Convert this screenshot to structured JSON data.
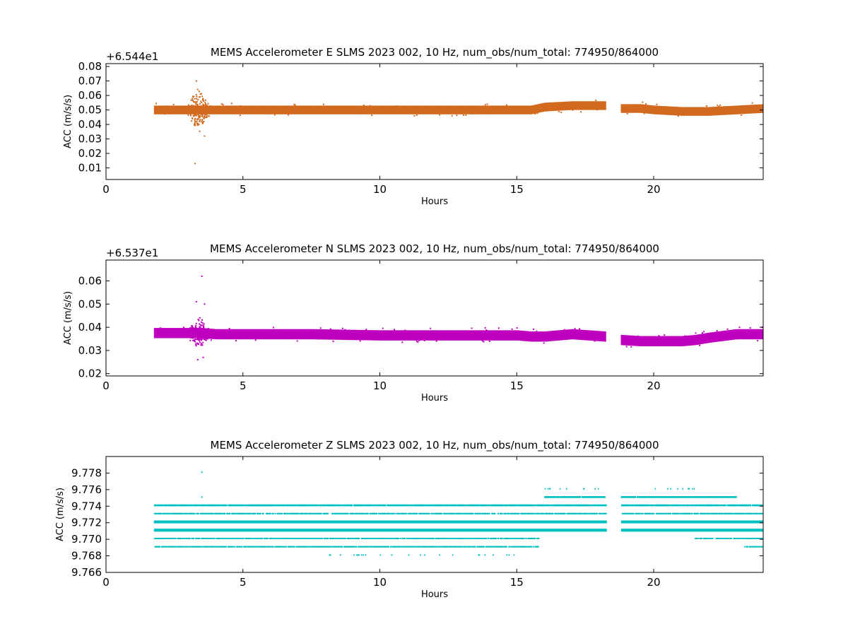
{
  "chart_data": [
    {
      "type": "scatter",
      "title": "MEMS Accelerometer E SLMS 2023 002, 10 Hz, num_obs/num_total: 774950/864000",
      "xlabel": "Hours",
      "ylabel": "ACC (m/s/s)",
      "offset_label": "+6.544e1",
      "xlim": [
        0,
        24
      ],
      "ylim": [
        0.002,
        0.082
      ],
      "x_ticks": [
        0,
        5,
        10,
        15,
        20
      ],
      "x_tick_labels": [
        "0",
        "5",
        "10",
        "15",
        "20"
      ],
      "y_ticks": [
        0.01,
        0.02,
        0.03,
        0.04,
        0.05,
        0.06,
        0.07,
        0.08
      ],
      "y_tick_labels": [
        "0.01",
        "0.02",
        "0.03",
        "0.04",
        "0.05",
        "0.06",
        "0.07",
        "0.08"
      ],
      "color": "#d2691e",
      "gap": [
        18.25,
        18.8
      ],
      "series": [
        {
          "x": [
            1.75,
            2.5,
            3.0,
            3.3,
            3.5,
            3.8,
            4.0,
            5.0,
            7.5,
            10.0,
            12.5,
            15.0,
            15.5,
            16.0,
            17.0,
            18.2,
            18.8,
            19.5,
            20.0,
            21.0,
            21.5,
            22.0,
            23.0,
            24.0
          ],
          "y": [
            0.05,
            0.05,
            0.05,
            0.05,
            0.05,
            0.05,
            0.05,
            0.05,
            0.05,
            0.05,
            0.05,
            0.05,
            0.05,
            0.052,
            0.053,
            0.053,
            0.051,
            0.051,
            0.05,
            0.049,
            0.049,
            0.049,
            0.05,
            0.051
          ]
        }
      ],
      "burst": {
        "x_range": [
          2.9,
          3.9
        ],
        "y_range": [
          0.03,
          0.066
        ],
        "outliers": [
          [
            3.25,
            0.013
          ],
          [
            3.3,
            0.07
          ],
          [
            3.6,
            0.032
          ]
        ]
      }
    },
    {
      "type": "scatter",
      "title": "MEMS Accelerometer N SLMS 2023 002, 10 Hz, num_obs/num_total: 774950/864000",
      "xlabel": "Hours",
      "ylabel": "ACC (m/s/s)",
      "offset_label": "+6.537e1",
      "xlim": [
        0,
        24
      ],
      "ylim": [
        0.019,
        0.069
      ],
      "x_ticks": [
        0,
        5,
        10,
        15,
        20
      ],
      "x_tick_labels": [
        "0",
        "5",
        "10",
        "15",
        "20"
      ],
      "y_ticks": [
        0.02,
        0.03,
        0.04,
        0.05,
        0.06
      ],
      "y_tick_labels": [
        "0.02",
        "0.03",
        "0.04",
        "0.05",
        "0.06"
      ],
      "color": "#bf00bf",
      "gap": [
        18.25,
        18.8
      ],
      "series": [
        {
          "x": [
            1.75,
            2.5,
            3.0,
            3.5,
            4.0,
            5.0,
            7.5,
            10.0,
            12.5,
            15.0,
            15.5,
            16.0,
            17.0,
            18.2,
            18.8,
            19.5,
            20.0,
            21.0,
            21.5,
            22.0,
            23.0,
            24.0
          ],
          "y": [
            0.0375,
            0.0375,
            0.0375,
            0.0375,
            0.037,
            0.037,
            0.037,
            0.0365,
            0.0365,
            0.0365,
            0.036,
            0.036,
            0.037,
            0.036,
            0.0345,
            0.034,
            0.034,
            0.034,
            0.0345,
            0.0355,
            0.037,
            0.037
          ]
        }
      ],
      "burst": {
        "x_range": [
          2.9,
          3.9
        ],
        "y_range": [
          0.03,
          0.046
        ],
        "outliers": [
          [
            3.5,
            0.062
          ],
          [
            3.3,
            0.051
          ],
          [
            3.6,
            0.05
          ],
          [
            3.35,
            0.026
          ],
          [
            3.55,
            0.027
          ]
        ]
      }
    },
    {
      "type": "scatter",
      "title": "MEMS Accelerometer Z SLMS 2023 002, 10 Hz, num_obs/num_total: 774950/864000",
      "xlabel": "Hours",
      "ylabel": "ACC (m/s/s)",
      "offset_label": "",
      "xlim": [
        0,
        24
      ],
      "ylim": [
        9.766,
        9.78
      ],
      "x_ticks": [
        0,
        5,
        10,
        15,
        20
      ],
      "x_tick_labels": [
        "0",
        "5",
        "10",
        "15",
        "20"
      ],
      "y_ticks": [
        9.766,
        9.768,
        9.77,
        9.772,
        9.774,
        9.776,
        9.778
      ],
      "y_tick_labels": [
        "9.766",
        "9.768",
        "9.770",
        "9.772",
        "9.774",
        "9.776",
        "9.778"
      ],
      "color": "#00bfbf",
      "gap": [
        18.25,
        18.8
      ],
      "quantized_levels": [
        {
          "y": 9.7761,
          "ranges": [
            [
              16.0,
              18.2
            ],
            [
              20.0,
              21.6
            ]
          ],
          "style": "sparse"
        },
        {
          "y": 9.7751,
          "ranges": [
            [
              16.0,
              18.2
            ],
            [
              18.8,
              23.0
            ]
          ],
          "style": "medium"
        },
        {
          "y": 9.7741,
          "ranges": [
            [
              1.75,
              24.0
            ]
          ],
          "style": "medium"
        },
        {
          "y": 9.7731,
          "ranges": [
            [
              1.75,
              24.0
            ]
          ],
          "style": "thin"
        },
        {
          "y": 9.7721,
          "ranges": [
            [
              1.75,
              24.0
            ]
          ],
          "style": "thick"
        },
        {
          "y": 9.7711,
          "ranges": [
            [
              1.75,
              24.0
            ]
          ],
          "style": "thick"
        },
        {
          "y": 9.7701,
          "ranges": [
            [
              1.75,
              15.8
            ],
            [
              21.5,
              24.0
            ]
          ],
          "style": "thin"
        },
        {
          "y": 9.7691,
          "ranges": [
            [
              1.75,
              15.8
            ],
            [
              23.3,
              24.0
            ]
          ],
          "style": "thin"
        },
        {
          "y": 9.7681,
          "ranges": [
            [
              8.0,
              15.0
            ]
          ],
          "style": "sparse"
        }
      ],
      "outliers": [
        [
          3.5,
          9.7781
        ],
        [
          3.5,
          9.7751
        ]
      ]
    }
  ]
}
